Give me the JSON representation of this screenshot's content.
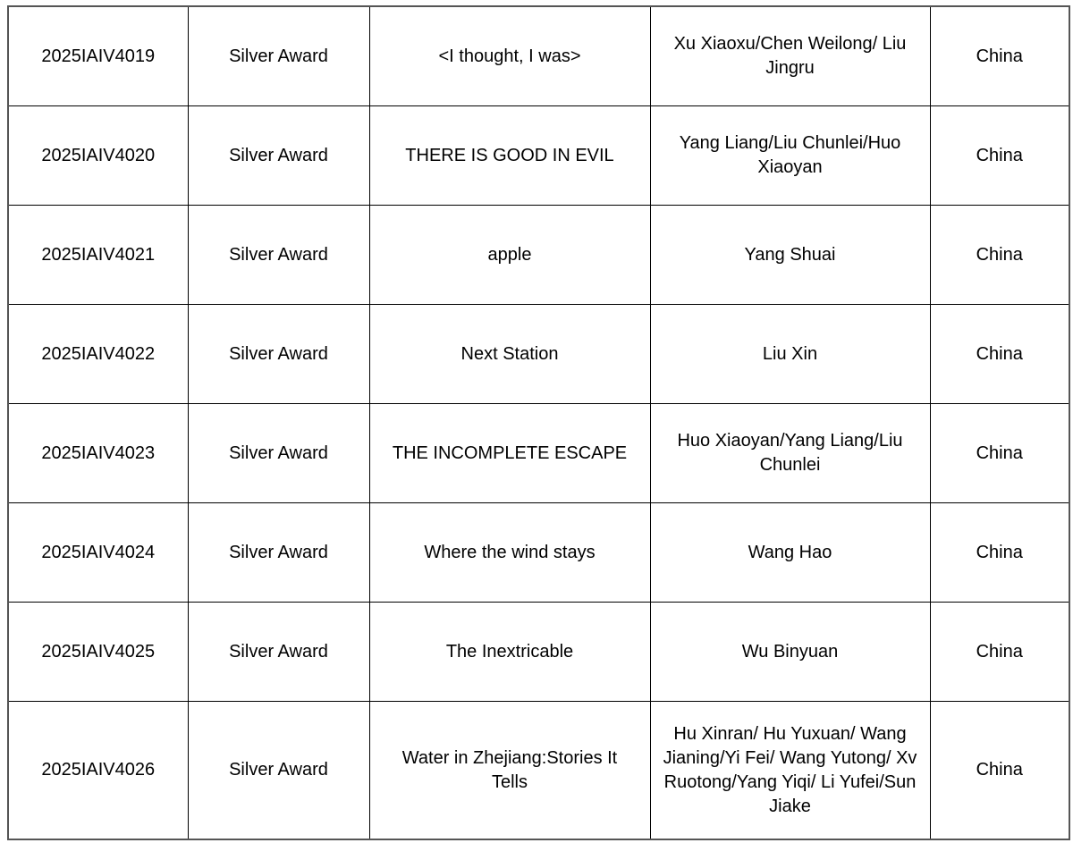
{
  "table": {
    "rows": [
      [
        "2025IAIV4019",
        "Silver Award",
        "<I thought, I was>",
        "Xu Xiaoxu/Chen Weilong/ Liu Jingru",
        "China"
      ],
      [
        "2025IAIV4020",
        "Silver Award",
        "THERE IS GOOD IN EVIL",
        "Yang Liang/Liu Chunlei/Huo Xiaoyan",
        "China"
      ],
      [
        "2025IAIV4021",
        "Silver Award",
        "apple",
        "Yang Shuai",
        "China"
      ],
      [
        "2025IAIV4022",
        "Silver Award",
        "Next Station",
        "Liu Xin",
        "China"
      ],
      [
        "2025IAIV4023",
        "Silver Award",
        "THE INCOMPLETE ESCAPE",
        "Huo Xiaoyan/Yang Liang/Liu Chunlei",
        "China"
      ],
      [
        "2025IAIV4024",
        "Silver Award",
        "Where the wind stays",
        "Wang Hao",
        "China"
      ],
      [
        "2025IAIV4025",
        "Silver Award",
        "The Inextricable",
        "Wu Binyuan",
        "China"
      ],
      [
        "2025IAIV4026",
        "Silver Award",
        "Water in Zhejiang:Stories It Tells",
        "Hu Xinran/ Hu Yuxuan/ Wang Jianing/Yi Fei/ Wang Yutong/ Xv Ruotong/Yang Yiqi/ Li Yufei/Sun Jiake",
        "China"
      ]
    ]
  }
}
